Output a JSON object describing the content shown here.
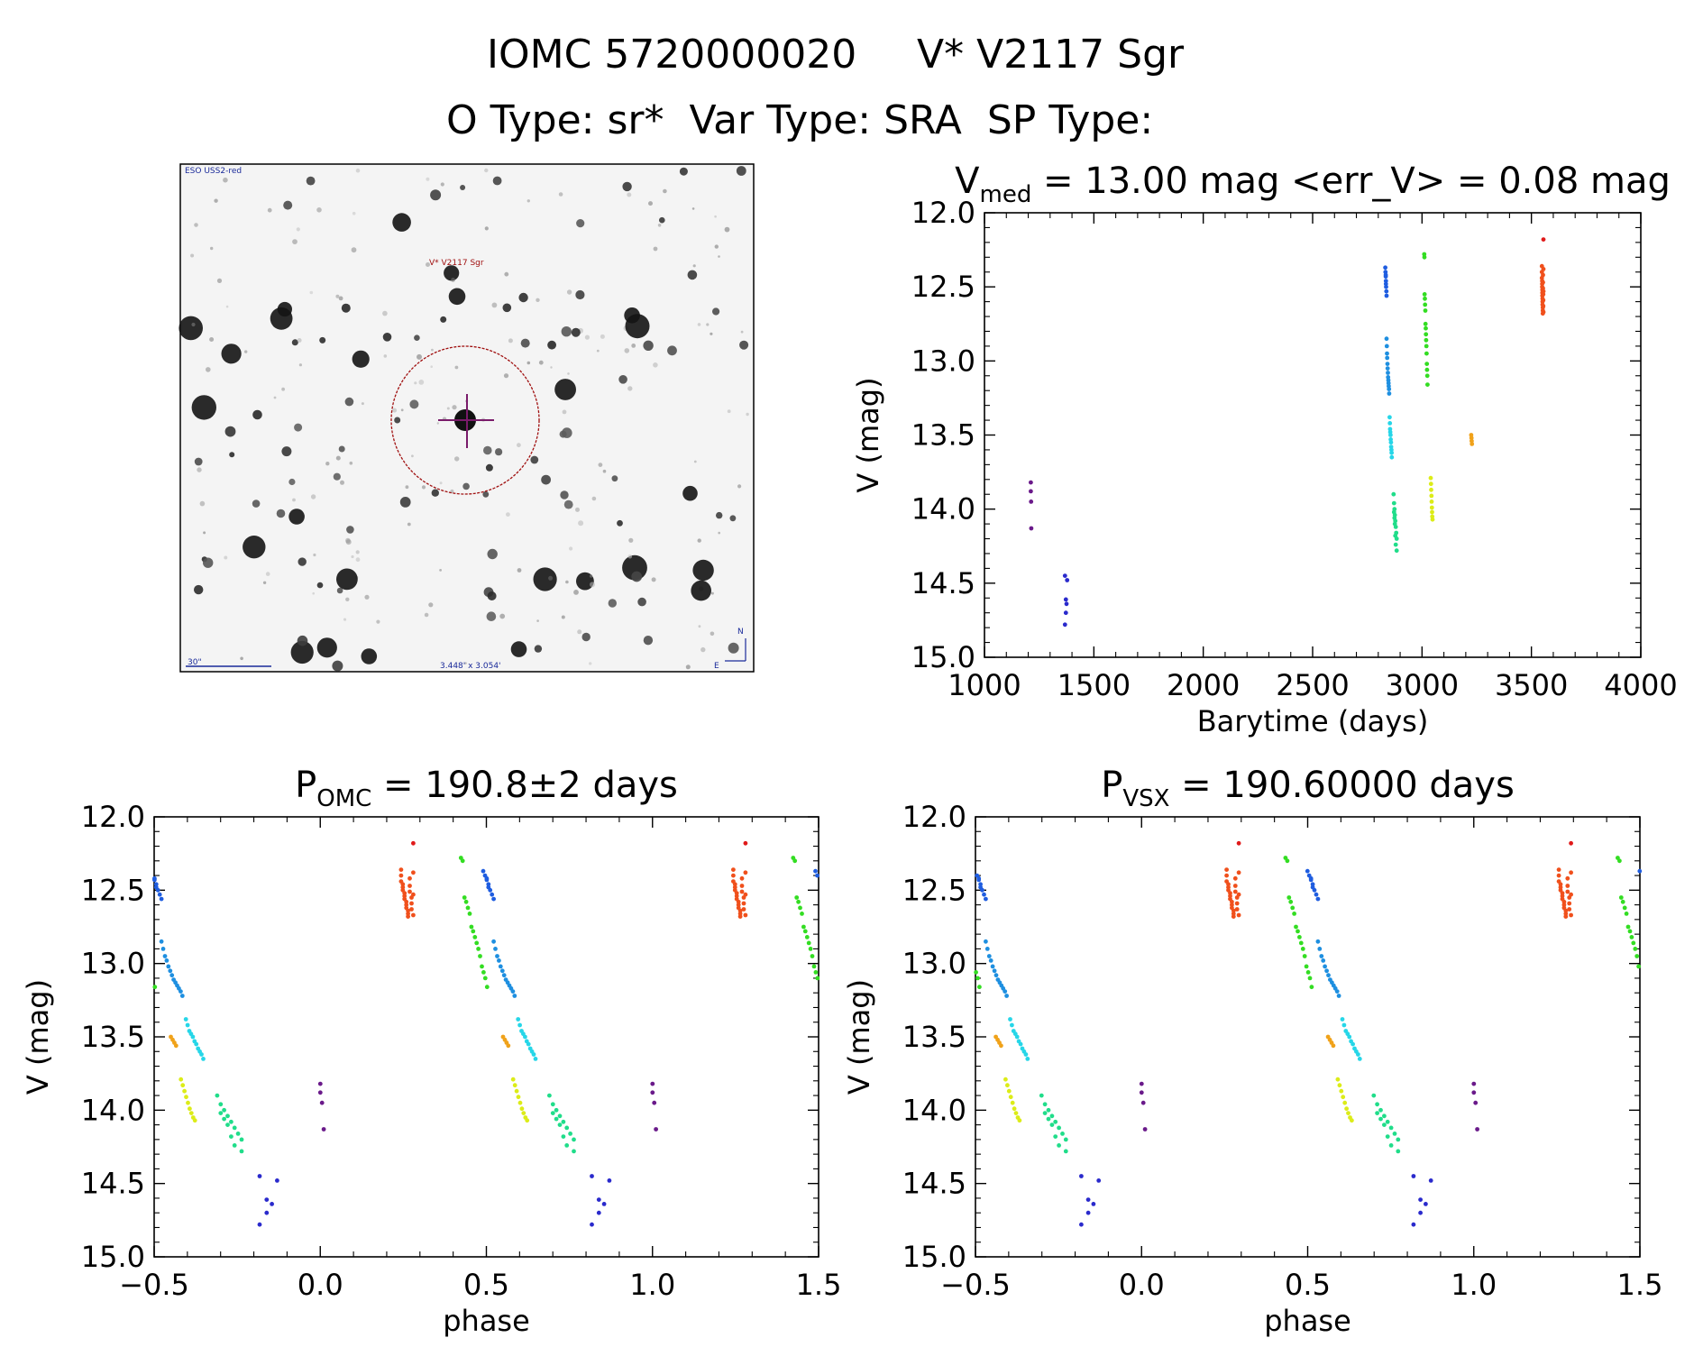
{
  "header": {
    "line1_left": "IOMC 5720000020",
    "line1_right": "V* V2117 Sgr",
    "line2": "O Type: sr*  Var Type: SRA  SP Type:"
  },
  "finder": {
    "survey_label": "ESO USS2-red",
    "target_label": "V* V2117 Sgr",
    "scale_label": "30\"",
    "size_label": "3.448' x 3.054'",
    "north_label": "N",
    "east_label": "E",
    "circle_color": "#a01010",
    "cross_color": "#7a1b6a"
  },
  "chart_data": [
    {
      "type": "scatter",
      "id": "lightcurve",
      "title_main": "V",
      "title_sub": "med",
      "title_rest": " = 13.00 mag <err_V> = 0.08 mag",
      "xlabel": "Barytime (days)",
      "ylabel": "V (mag)",
      "xlim": [
        1000,
        4000
      ],
      "ylim": [
        15.0,
        12.0
      ],
      "y_inverted": true,
      "xticks": [
        "1000",
        "1500",
        "2000",
        "2500",
        "3000",
        "3500",
        "4000"
      ],
      "yticks": [
        "12.0",
        "12.5",
        "13.0",
        "13.5",
        "14.0",
        "14.5",
        "15.0"
      ],
      "series": [
        {
          "color": "#6a1a8a",
          "x": [
            1212,
            1212,
            1213,
            1214
          ],
          "y": [
            13.82,
            13.88,
            13.95,
            14.13
          ]
        },
        {
          "color": "#2a2acc",
          "x": [
            1368,
            1372,
            1375,
            1378,
            1372,
            1368
          ],
          "y": [
            14.45,
            14.61,
            14.64,
            14.48,
            14.7,
            14.78
          ]
        },
        {
          "color": "#1f5de0",
          "x": [
            2832,
            2833,
            2834,
            2835,
            2836,
            2837,
            2838,
            2834,
            2835
          ],
          "y": [
            12.37,
            12.4,
            12.43,
            12.46,
            12.5,
            12.53,
            12.56,
            12.42,
            12.48
          ]
        },
        {
          "color": "#1e8fe0",
          "x": [
            2838,
            2839,
            2840,
            2841,
            2842,
            2843,
            2844,
            2845,
            2846,
            2847,
            2848,
            2849,
            2850
          ],
          "y": [
            12.85,
            12.9,
            12.95,
            12.98,
            13.02,
            13.05,
            13.08,
            13.11,
            13.13,
            13.15,
            13.17,
            13.19,
            13.22
          ]
        },
        {
          "color": "#26d6e8",
          "x": [
            2852,
            2853,
            2854,
            2855,
            2856,
            2857,
            2858,
            2859,
            2860,
            2861,
            2862
          ],
          "y": [
            13.38,
            13.42,
            13.46,
            13.48,
            13.5,
            13.53,
            13.55,
            13.58,
            13.6,
            13.62,
            13.65
          ]
        },
        {
          "color": "#20dd8a",
          "x": [
            2870,
            2872,
            2874,
            2876,
            2878,
            2880,
            2882,
            2884,
            2872,
            2876,
            2880,
            2884,
            2878,
            2874
          ],
          "y": [
            13.9,
            13.96,
            14.0,
            14.04,
            14.08,
            14.12,
            14.16,
            14.2,
            14.02,
            14.1,
            14.24,
            14.28,
            14.18,
            14.06
          ]
        },
        {
          "color": "#33dd22",
          "x": [
            3010,
            3011,
            3012,
            3013,
            3014,
            3015,
            3016,
            3017,
            3018,
            3019,
            3020,
            3021,
            3022,
            3023,
            3024,
            3025
          ],
          "y": [
            12.28,
            12.3,
            12.55,
            12.58,
            12.62,
            12.66,
            12.75,
            12.78,
            12.82,
            12.86,
            12.9,
            12.95,
            13.02,
            13.06,
            13.1,
            13.16
          ]
        },
        {
          "color": "#dcec18",
          "x": [
            3040,
            3041,
            3042,
            3043,
            3044,
            3045,
            3046,
            3047,
            3048
          ],
          "y": [
            13.79,
            13.83,
            13.87,
            13.91,
            13.95,
            13.99,
            14.02,
            14.05,
            14.07
          ]
        },
        {
          "color": "#f0a21a",
          "x": [
            3225,
            3226,
            3227,
            3228
          ],
          "y": [
            13.5,
            13.52,
            13.54,
            13.56
          ]
        },
        {
          "color": "#f0501c",
          "x": [
            3548,
            3548,
            3548,
            3549,
            3549,
            3549,
            3550,
            3550,
            3550,
            3551,
            3551,
            3551,
            3552,
            3552,
            3552,
            3553,
            3553,
            3553,
            3554,
            3554,
            3554,
            3555,
            3555,
            3555
          ],
          "y": [
            12.36,
            12.4,
            12.44,
            12.46,
            12.48,
            12.5,
            12.52,
            12.54,
            12.56,
            12.58,
            12.6,
            12.62,
            12.64,
            12.66,
            12.68,
            12.42,
            12.47,
            12.51,
            12.55,
            12.59,
            12.63,
            12.67,
            12.38,
            12.53
          ]
        },
        {
          "color": "#e01a1a",
          "x": [
            3555
          ],
          "y": [
            12.18
          ]
        }
      ]
    },
    {
      "type": "scatter",
      "id": "phase_omc",
      "title_main": "P",
      "title_sub": "OMC",
      "title_rest": " = 190.8±2 days",
      "xlabel": "phase",
      "ylabel": "V (mag)",
      "xlim": [
        -0.5,
        1.5
      ],
      "ylim": [
        15.0,
        12.0
      ],
      "period": 190.8,
      "epoch": 1212
    },
    {
      "type": "scatter",
      "id": "phase_vsx",
      "title_main": "P",
      "title_sub": "VSX",
      "title_rest": " = 190.60000 days",
      "xlabel": "phase",
      "ylabel": "V (mag)",
      "xlim": [
        -0.5,
        1.5
      ],
      "ylim": [
        15.0,
        12.0
      ],
      "period": 190.6,
      "epoch": 1212
    }
  ],
  "phase_xticks": [
    "−0.5",
    "0.0",
    "0.5",
    "1.0",
    "1.5"
  ],
  "phase_yticks": [
    "12.0",
    "12.5",
    "13.0",
    "13.5",
    "14.0",
    "14.5",
    "15.0"
  ]
}
